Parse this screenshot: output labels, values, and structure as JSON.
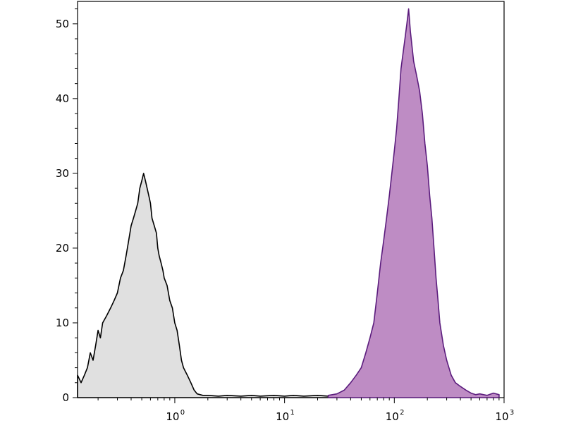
{
  "chart_data": {
    "type": "area",
    "xscale": "log",
    "xlim": [
      0.13,
      1000
    ],
    "ylim": [
      0,
      53
    ],
    "x_ticks": [
      {
        "value": 1,
        "base": "10",
        "exp": "0"
      },
      {
        "value": 10,
        "base": "10",
        "exp": "1"
      },
      {
        "value": 100,
        "base": "10",
        "exp": "2"
      },
      {
        "value": 1000,
        "base": "10",
        "exp": "3"
      }
    ],
    "y_ticks": [
      {
        "value": 0,
        "label": "0"
      },
      {
        "value": 10,
        "label": "10"
      },
      {
        "value": 20,
        "label": "20"
      },
      {
        "value": 30,
        "label": "30"
      },
      {
        "value": 40,
        "label": "40"
      },
      {
        "value": 50,
        "label": "50"
      }
    ],
    "grid": false,
    "series": [
      {
        "stroke": "#000000",
        "fill": "#e0e0e0",
        "x": [
          0.13,
          0.14,
          0.15,
          0.16,
          0.17,
          0.18,
          0.19,
          0.2,
          0.21,
          0.22,
          0.24,
          0.26,
          0.28,
          0.3,
          0.32,
          0.34,
          0.36,
          0.38,
          0.4,
          0.42,
          0.44,
          0.46,
          0.48,
          0.5,
          0.52,
          0.54,
          0.56,
          0.58,
          0.6,
          0.62,
          0.65,
          0.68,
          0.7,
          0.72,
          0.75,
          0.78,
          0.8,
          0.85,
          0.9,
          0.95,
          1.0,
          1.05,
          1.1,
          1.15,
          1.2,
          1.3,
          1.4,
          1.5,
          1.6,
          1.8,
          2.0,
          2.5,
          3,
          4,
          5,
          6,
          8,
          10,
          12,
          15,
          20,
          25,
          30
        ],
        "y": [
          3,
          2,
          3,
          4,
          6,
          5,
          7,
          9,
          8,
          10,
          11,
          12,
          13,
          14,
          16,
          17,
          19,
          21,
          23,
          24,
          25,
          26,
          28,
          29,
          30,
          29,
          28,
          27,
          26,
          24,
          23,
          22,
          20,
          19,
          18,
          17,
          16,
          15,
          13,
          12,
          10,
          9,
          7,
          5,
          4,
          3,
          2,
          1,
          0.5,
          0.3,
          0.3,
          0.2,
          0.3,
          0.2,
          0.3,
          0.2,
          0.3,
          0.2,
          0.3,
          0.2,
          0.3,
          0.2,
          0
        ]
      },
      {
        "stroke": "#5b1c7d",
        "fill": "#be8cc4",
        "x": [
          25,
          30,
          35,
          40,
          45,
          50,
          55,
          60,
          65,
          70,
          75,
          80,
          85,
          90,
          95,
          100,
          105,
          110,
          115,
          120,
          125,
          130,
          135,
          140,
          145,
          150,
          160,
          170,
          180,
          190,
          200,
          210,
          220,
          230,
          240,
          250,
          260,
          280,
          300,
          330,
          360,
          400,
          450,
          500,
          550,
          600,
          700,
          800,
          900
        ],
        "y": [
          0.3,
          0.5,
          1,
          2,
          3,
          4,
          6,
          8,
          10,
          14,
          18,
          21,
          24,
          27,
          30,
          33,
          36,
          40,
          44,
          46,
          48,
          50,
          52,
          49,
          47,
          45,
          43,
          41,
          38,
          34,
          31,
          27,
          24,
          20,
          16,
          13,
          10,
          7,
          5,
          3,
          2,
          1.5,
          1,
          0.6,
          0.4,
          0.5,
          0.3,
          0.6,
          0.4
        ]
      }
    ]
  }
}
